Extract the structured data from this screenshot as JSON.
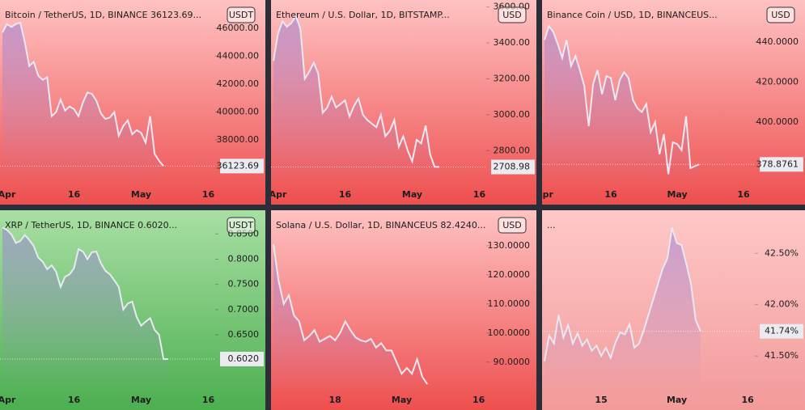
{
  "chart_data": [
    {
      "type": "line",
      "title": "Bitcoin / TetherUS, 1D, BINANCE  36123.69...",
      "currency": "USDT",
      "categories": [
        null,
        "Apr",
        null,
        null,
        null,
        null,
        null,
        null,
        null,
        null,
        null,
        null,
        null,
        null,
        null,
        null,
        "16",
        null,
        null,
        null,
        null,
        null,
        null,
        null,
        null,
        null,
        null,
        null,
        null,
        null,
        null,
        "May",
        null,
        null,
        null,
        null,
        null,
        null,
        null,
        null,
        null,
        null,
        null,
        null,
        null,
        null,
        "16",
        null
      ],
      "values": [
        45700,
        46300,
        46100,
        46300,
        46400,
        45000,
        43300,
        43600,
        42600,
        42300,
        42500,
        39700,
        40000,
        40900,
        40100,
        40400,
        40200,
        39700,
        40700,
        41400,
        41300,
        40800,
        39900,
        39500,
        39600,
        40000,
        38300,
        39000,
        39400,
        38400,
        38700,
        38500,
        37800,
        39700,
        37000,
        36500,
        36123.69,
        null,
        null,
        null,
        null,
        null,
        null,
        null,
        null,
        null,
        null,
        null
      ],
      "color": "#e8e8f2",
      "background": [
        "#ffc2c2",
        "#ee4f4f"
      ],
      "ylim": [
        34810,
        48030
      ],
      "yticks": [
        {
          "value": 38000,
          "label": "38000.00"
        },
        {
          "value": 40000,
          "label": "40000.00"
        },
        {
          "value": 42000,
          "label": "42000.00"
        },
        {
          "value": 44000,
          "label": "44000.00"
        },
        {
          "value": 46000,
          "label": "46000.00"
        }
      ],
      "last_price": {
        "value": 36123.69,
        "label": "36123.69"
      }
    },
    {
      "type": "line",
      "title": "Ethereum / U.S. Dollar, 1D, BITSTAMP...",
      "currency": "USD",
      "categories": [
        null,
        "Apr",
        null,
        null,
        null,
        null,
        null,
        null,
        null,
        null,
        null,
        null,
        null,
        null,
        null,
        null,
        "16",
        null,
        null,
        null,
        null,
        null,
        null,
        null,
        null,
        null,
        null,
        null,
        null,
        null,
        null,
        "May",
        null,
        null,
        null,
        null,
        null,
        null,
        null,
        null,
        null,
        null,
        null,
        null,
        null,
        null,
        "16",
        null
      ],
      "values": [
        3300,
        3450,
        3520,
        3490,
        3510,
        3550,
        3480,
        3200,
        3240,
        3290,
        3230,
        3010,
        3040,
        3100,
        3040,
        3060,
        3080,
        2990,
        3050,
        3090,
        3000,
        2970,
        2950,
        2930,
        3000,
        2880,
        2910,
        2970,
        2820,
        2880,
        2800,
        2740,
        2860,
        2840,
        2940,
        2780,
        2710,
        2708.98,
        null,
        null,
        null,
        null,
        null,
        null,
        null,
        null,
        null,
        null
      ],
      "color": "#e8e8f2",
      "background": [
        "#ffc2c2",
        "#ee4f4f"
      ],
      "ylim": [
        2612,
        3639
      ],
      "yticks": [
        {
          "value": 2800,
          "label": "2800.00"
        },
        {
          "value": 3000,
          "label": "3000.00"
        },
        {
          "value": 3200,
          "label": "3200.00"
        },
        {
          "value": 3400,
          "label": "3400.00"
        },
        {
          "value": 3600,
          "label": "3600.00"
        }
      ],
      "last_price": {
        "value": 2708.98,
        "label": "2708.98"
      }
    },
    {
      "type": "line",
      "title": "Binance Coin / USD, 1D, BINANCEUS...",
      "currency": "USD",
      "categories": [
        "Apr",
        null,
        null,
        null,
        null,
        null,
        null,
        null,
        null,
        null,
        null,
        null,
        null,
        null,
        null,
        "16",
        null,
        null,
        null,
        null,
        null,
        null,
        null,
        null,
        null,
        null,
        null,
        null,
        null,
        null,
        "May",
        null,
        null,
        null,
        null,
        null,
        null,
        null,
        null,
        null,
        null,
        null,
        null,
        null,
        null,
        "16",
        null,
        null
      ],
      "values": [
        441,
        448,
        445,
        439,
        432,
        441,
        428,
        433,
        426,
        418,
        398,
        419,
        426,
        414,
        423,
        422,
        411,
        421,
        425,
        422,
        411,
        407,
        405,
        409,
        395,
        400,
        384,
        394,
        374,
        390,
        389,
        386,
        403,
        377,
        378,
        378.8761,
        null,
        null,
        null,
        null,
        null,
        null,
        null,
        null,
        null,
        null,
        null,
        null
      ],
      "color": "#e8e8f2",
      "background": [
        "#ffc2c2",
        "#ee4f4f"
      ],
      "ylim": [
        368.9,
        461
      ],
      "yticks": [
        {
          "value": 400,
          "label": "400.0000"
        },
        {
          "value": 420,
          "label": "420.0000"
        },
        {
          "value": 440,
          "label": "440.0000"
        }
      ],
      "last_price": {
        "value": 378.8761,
        "label": "378.8761"
      }
    },
    {
      "type": "line",
      "title": "XRP / TetherUS, 1D, BINANCE  0.6020...",
      "currency": "USDT",
      "categories": [
        null,
        "Apr",
        null,
        null,
        null,
        null,
        null,
        null,
        null,
        null,
        null,
        null,
        null,
        null,
        null,
        null,
        "16",
        null,
        null,
        null,
        null,
        null,
        null,
        null,
        null,
        null,
        null,
        null,
        null,
        null,
        null,
        "May",
        null,
        null,
        null,
        null,
        null,
        null,
        null,
        null,
        null,
        null,
        null,
        null,
        null,
        null,
        "16",
        null
      ],
      "values": [
        0.863,
        0.858,
        0.849,
        0.832,
        0.836,
        0.848,
        0.838,
        0.826,
        0.803,
        0.795,
        0.78,
        0.788,
        0.775,
        0.745,
        0.765,
        0.77,
        0.782,
        0.82,
        0.815,
        0.8,
        0.814,
        0.815,
        0.792,
        0.777,
        0.77,
        0.758,
        0.745,
        0.7,
        0.712,
        0.716,
        0.685,
        0.668,
        0.676,
        0.683,
        0.66,
        0.65,
        0.602,
        0.602,
        null,
        null,
        null,
        null,
        null,
        null,
        null,
        null,
        null,
        null
      ],
      "color": "#e8e8f2",
      "background": [
        "#a8dfa3",
        "#4caf50"
      ],
      "ylim": [
        0.541,
        0.897
      ],
      "yticks": [
        {
          "value": 0.65,
          "label": "0.6500"
        },
        {
          "value": 0.7,
          "label": "0.7000"
        },
        {
          "value": 0.75,
          "label": "0.7500"
        },
        {
          "value": 0.8,
          "label": "0.8000"
        },
        {
          "value": 0.85,
          "label": "0.8500"
        }
      ],
      "last_price": {
        "value": 0.602,
        "label": "0.6020"
      }
    },
    {
      "type": "line",
      "title": "Solana / U.S. Dollar, 1D, BINANCEUS  82.4240...",
      "currency": "USD",
      "categories": [
        null,
        null,
        null,
        null,
        null,
        null,
        null,
        null,
        null,
        null,
        null,
        null,
        "18",
        null,
        null,
        null,
        null,
        null,
        null,
        null,
        null,
        null,
        null,
        null,
        null,
        "May",
        null,
        null,
        null,
        null,
        null,
        null,
        null,
        null,
        null,
        null,
        null,
        null,
        null,
        null,
        "16",
        null
      ],
      "values": [
        130.5,
        118,
        110,
        113,
        106,
        104,
        97.5,
        99,
        101,
        97,
        98,
        99,
        97.5,
        100,
        104,
        101,
        98.5,
        97.5,
        97,
        98,
        95,
        96.5,
        94,
        94,
        90,
        86,
        88,
        86,
        91,
        85,
        82.424,
        null,
        null,
        null,
        null,
        null,
        null,
        null,
        null,
        null,
        null,
        null
      ],
      "color": "#e8e8f2",
      "background": [
        "#ffc2c2",
        "#ee4f4f"
      ],
      "ylim": [
        80.5,
        142.2
      ],
      "yticks": [
        {
          "value": 90,
          "label": "90.0000"
        },
        {
          "value": 100,
          "label": "100.0000"
        },
        {
          "value": 110,
          "label": "110.0000"
        },
        {
          "value": 120,
          "label": "120.0000"
        },
        {
          "value": 130,
          "label": "130.0000"
        }
      ]
    },
    {
      "type": "line",
      "title": "...",
      "categories": [
        null,
        null,
        null,
        null,
        null,
        null,
        null,
        null,
        null,
        null,
        null,
        null,
        "15",
        null,
        null,
        null,
        null,
        null,
        null,
        null,
        null,
        null,
        null,
        null,
        null,
        null,
        null,
        null,
        "May",
        null,
        null,
        null,
        null,
        null,
        null,
        null,
        null,
        null,
        null,
        null,
        null,
        null,
        null,
        "16",
        null
      ],
      "values": [
        41.45,
        41.7,
        41.62,
        41.9,
        41.68,
        41.8,
        41.62,
        41.72,
        41.6,
        41.66,
        41.55,
        41.6,
        41.5,
        41.58,
        41.48,
        41.63,
        41.73,
        41.71,
        41.81,
        41.58,
        41.62,
        41.75,
        41.9,
        42.05,
        42.2,
        42.35,
        42.45,
        42.75,
        42.6,
        42.58,
        42.4,
        42.2,
        41.85,
        41.74,
        null,
        null,
        null,
        null,
        null,
        null,
        null,
        null,
        null,
        null,
        null
      ],
      "color": "#e8e8f2",
      "background": [
        "#ffc8c8",
        "#f29a9a"
      ],
      "ylim": [
        41.17,
        42.92
      ],
      "yticks": [
        {
          "value": 41.5,
          "label": "41.50%"
        },
        {
          "value": 42,
          "label": "42.00%"
        },
        {
          "value": 42.5,
          "label": "42.50%"
        }
      ],
      "last_price": {
        "value": 41.74,
        "label": "41.74%"
      }
    }
  ]
}
